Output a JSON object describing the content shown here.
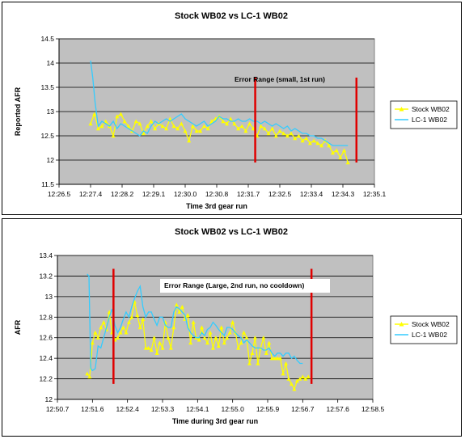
{
  "chart_data": [
    {
      "type": "line",
      "title": "Stock WB02 vs LC-1 WB02",
      "xlabel": "Time 3rd gear run",
      "ylabel": "Reported AFR",
      "x_ticks": [
        "12:26.5",
        "12:27.4",
        "12:28.2",
        "12:29.1",
        "12:30.0",
        "12:30.8",
        "12:31.7",
        "12:32.5",
        "12:33.4",
        "12:34.3",
        "12:35.1"
      ],
      "y_ticks": [
        "11.5",
        "12",
        "12.5",
        "13",
        "13.5",
        "14",
        "14.5"
      ],
      "ylim": [
        11.5,
        14.5
      ],
      "grid": true,
      "legend_position": "right",
      "annotation": "Error Range (small, 1st run)",
      "error_range_x_index": [
        6.22,
        9.43
      ],
      "error_range_y": [
        11.95,
        13.7
      ],
      "series": [
        {
          "name": "Stock WB02",
          "color": "#ffff00",
          "marker": "triangle",
          "x": [
            1.0,
            1.12,
            1.24,
            1.36,
            1.48,
            1.6,
            1.72,
            1.84,
            1.96,
            2.08,
            2.2,
            2.32,
            2.44,
            2.56,
            2.68,
            2.8,
            2.92,
            3.04,
            3.16,
            3.28,
            3.4,
            3.52,
            3.64,
            3.76,
            3.88,
            4.0,
            4.12,
            4.24,
            4.36,
            4.48,
            4.6,
            4.72,
            4.84,
            4.96,
            5.08,
            5.2,
            5.32,
            5.44,
            5.56,
            5.68,
            5.8,
            5.92,
            6.04,
            6.16,
            6.28,
            6.4,
            6.52,
            6.64,
            6.76,
            6.88,
            7.0,
            7.12,
            7.24,
            7.36,
            7.48,
            7.6,
            7.72,
            7.84,
            7.96,
            8.08,
            8.2,
            8.32,
            8.44,
            8.56,
            8.68,
            8.8,
            8.92,
            9.04,
            9.16
          ],
          "values": [
            12.75,
            12.95,
            12.65,
            12.7,
            12.8,
            12.7,
            12.5,
            12.9,
            12.95,
            12.8,
            12.7,
            12.6,
            12.8,
            12.75,
            12.55,
            12.7,
            12.8,
            12.65,
            12.75,
            12.7,
            12.65,
            12.85,
            12.7,
            12.65,
            12.75,
            12.6,
            12.4,
            12.7,
            12.6,
            12.6,
            12.7,
            12.65,
            12.8,
            12.85,
            12.9,
            12.8,
            12.75,
            12.85,
            12.75,
            12.65,
            12.7,
            12.6,
            12.75,
            12.65,
            12.5,
            12.7,
            12.65,
            12.55,
            12.65,
            12.5,
            12.6,
            12.55,
            12.5,
            12.55,
            12.45,
            12.5,
            12.4,
            12.45,
            12.35,
            12.4,
            12.35,
            12.3,
            12.4,
            12.3,
            12.15,
            12.2,
            12.05,
            12.2,
            11.95
          ]
        },
        {
          "name": "LC-1 WB02",
          "color": "#33ccff",
          "marker": "none",
          "x": [
            1.0,
            1.07,
            1.14,
            1.24,
            1.36,
            1.48,
            1.6,
            1.72,
            1.84,
            1.96,
            2.08,
            2.2,
            2.32,
            2.44,
            2.56,
            2.68,
            2.8,
            2.92,
            3.04,
            3.16,
            3.28,
            3.4,
            3.52,
            3.64,
            3.76,
            3.88,
            4.0,
            4.12,
            4.24,
            4.36,
            4.48,
            4.6,
            4.72,
            4.84,
            4.96,
            5.08,
            5.2,
            5.32,
            5.44,
            5.56,
            5.68,
            5.8,
            5.92,
            6.04,
            6.16,
            6.28,
            6.4,
            6.52,
            6.64,
            6.76,
            6.88,
            7.0,
            7.12,
            7.24,
            7.36,
            7.48,
            7.6,
            7.72,
            7.84,
            7.96,
            8.08,
            8.2,
            8.32,
            8.44,
            8.56,
            8.68,
            8.8,
            8.92,
            9.04,
            9.16
          ],
          "values": [
            14.05,
            13.7,
            13.2,
            12.7,
            12.8,
            12.75,
            12.7,
            12.8,
            12.65,
            12.75,
            12.7,
            12.65,
            12.6,
            12.55,
            12.5,
            12.6,
            12.55,
            12.7,
            12.8,
            12.75,
            12.8,
            12.85,
            12.8,
            12.85,
            12.9,
            12.95,
            12.85,
            12.8,
            12.75,
            12.7,
            12.75,
            12.8,
            12.7,
            12.75,
            12.8,
            12.9,
            12.85,
            12.85,
            12.8,
            12.8,
            12.85,
            12.8,
            12.8,
            12.85,
            12.8,
            12.8,
            12.75,
            12.8,
            12.75,
            12.7,
            12.75,
            12.7,
            12.65,
            12.7,
            12.6,
            12.65,
            12.6,
            12.55,
            12.55,
            12.5,
            12.5,
            12.45,
            12.45,
            12.4,
            12.35,
            12.3,
            12.3,
            12.3,
            12.3,
            12.3
          ]
        }
      ]
    },
    {
      "type": "line",
      "title": "Stock WB02 vs LC-1 WB02",
      "xlabel": "Time during 3rd gear run",
      "ylabel": "AFR",
      "x_ticks": [
        "12:50.7",
        "12:51.6",
        "12:52.4",
        "12:53.3",
        "12:54.1",
        "12:55.0",
        "12:55.9",
        "12:56.7",
        "12:57.6",
        "12:58.5"
      ],
      "y_ticks": [
        "12",
        "12.2",
        "12.4",
        "12.6",
        "12.8",
        "13",
        "13.2",
        "13.4"
      ],
      "ylim": [
        12,
        13.4
      ],
      "grid": true,
      "legend_position": "right",
      "annotation": "Error Range (Large, 2nd run, no cooldown)",
      "error_range_x_index": [
        1.6,
        7.25
      ],
      "error_range_y": [
        12.15,
        13.27
      ],
      "series": [
        {
          "name": "Stock WB02",
          "color": "#ffff00",
          "marker": "triangle",
          "x": [
            0.85,
            0.92,
            1.0,
            1.08,
            1.16,
            1.24,
            1.32,
            1.4,
            1.48,
            1.56,
            1.64,
            1.72,
            1.8,
            1.88,
            1.96,
            2.04,
            2.12,
            2.2,
            2.28,
            2.36,
            2.44,
            2.52,
            2.6,
            2.68,
            2.76,
            2.84,
            2.92,
            3.0,
            3.08,
            3.16,
            3.24,
            3.32,
            3.4,
            3.48,
            3.56,
            3.64,
            3.72,
            3.8,
            3.88,
            3.96,
            4.04,
            4.12,
            4.2,
            4.28,
            4.36,
            4.44,
            4.52,
            4.6,
            4.68,
            4.76,
            4.84,
            4.92,
            5.0,
            5.08,
            5.16,
            5.24,
            5.32,
            5.4,
            5.48,
            5.56,
            5.64,
            5.72,
            5.8,
            5.88,
            5.96,
            6.04,
            6.12,
            6.2,
            6.28,
            6.36,
            6.44,
            6.52,
            6.6,
            6.68,
            6.76,
            6.84,
            6.92,
            7.0,
            7.08,
            7.16
          ],
          "values": [
            12.25,
            12.22,
            12.55,
            12.65,
            12.6,
            12.7,
            12.75,
            12.68,
            12.85,
            12.65,
            12.58,
            12.6,
            12.65,
            12.7,
            12.65,
            12.75,
            12.8,
            12.95,
            12.82,
            12.7,
            12.78,
            12.5,
            12.5,
            12.48,
            12.6,
            12.45,
            12.55,
            12.5,
            12.75,
            12.6,
            12.5,
            12.7,
            12.92,
            12.85,
            12.9,
            12.78,
            12.82,
            12.55,
            12.75,
            12.6,
            12.58,
            12.7,
            12.6,
            12.55,
            12.65,
            12.5,
            12.6,
            12.52,
            12.7,
            12.55,
            12.6,
            12.65,
            12.75,
            12.65,
            12.5,
            12.55,
            12.65,
            12.6,
            12.35,
            12.45,
            12.6,
            12.35,
            12.5,
            12.6,
            12.45,
            12.55,
            12.4,
            12.4,
            12.4,
            12.4,
            12.25,
            12.35,
            12.2,
            12.15,
            12.1,
            12.18,
            12.2,
            12.22,
            12.2,
            12.22
          ]
        },
        {
          "name": "LC-1 WB02",
          "color": "#33ccff",
          "marker": "none",
          "x": [
            0.85,
            0.9,
            0.95,
            1.0,
            1.08,
            1.16,
            1.24,
            1.32,
            1.4,
            1.48,
            1.56,
            1.64,
            1.72,
            1.8,
            1.88,
            1.96,
            2.04,
            2.12,
            2.2,
            2.28,
            2.36,
            2.44,
            2.52,
            2.6,
            2.68,
            2.76,
            2.84,
            2.92,
            3.0,
            3.08,
            3.16,
            3.24,
            3.32,
            3.4,
            3.48,
            3.56,
            3.64,
            3.72,
            3.8,
            3.88,
            3.96,
            4.04,
            4.12,
            4.2,
            4.28,
            4.36,
            4.44,
            4.52,
            4.6,
            4.68,
            4.76,
            4.84,
            4.92,
            5.0,
            5.08,
            5.16,
            5.24,
            5.32,
            5.4,
            5.48,
            5.56,
            5.64,
            5.72,
            5.8,
            5.88,
            5.96,
            6.04,
            6.12,
            6.2,
            6.28,
            6.36,
            6.44,
            6.52,
            6.6,
            6.68,
            6.76,
            6.84,
            6.92,
            7.0
          ],
          "values": [
            13.22,
            13.2,
            12.3,
            12.28,
            12.3,
            12.52,
            12.5,
            12.6,
            12.7,
            12.8,
            12.88,
            12.72,
            12.65,
            12.7,
            12.78,
            12.85,
            12.8,
            12.9,
            12.98,
            13.05,
            13.1,
            12.9,
            12.8,
            12.85,
            12.85,
            12.78,
            12.72,
            12.8,
            12.8,
            12.72,
            12.7,
            12.7,
            12.85,
            12.9,
            12.88,
            12.85,
            12.82,
            12.7,
            12.65,
            12.62,
            12.6,
            12.6,
            12.65,
            12.62,
            12.68,
            12.7,
            12.75,
            12.72,
            12.68,
            12.65,
            12.62,
            12.7,
            12.7,
            12.68,
            12.65,
            12.62,
            12.6,
            12.55,
            12.58,
            12.55,
            12.52,
            12.5,
            12.5,
            12.5,
            12.48,
            12.48,
            12.5,
            12.45,
            12.42,
            12.45,
            12.45,
            12.42,
            12.45,
            12.45,
            12.4,
            12.42,
            12.38,
            12.35,
            12.35
          ]
        }
      ]
    }
  ]
}
